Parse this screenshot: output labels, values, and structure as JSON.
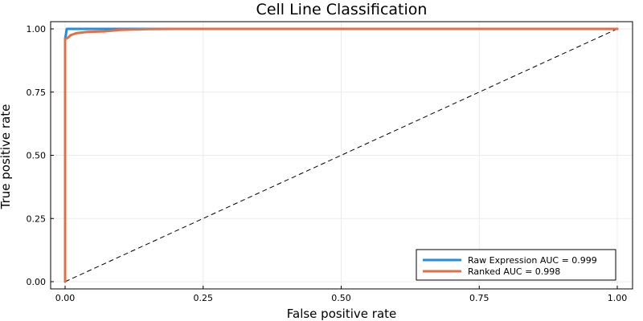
{
  "chart_data": {
    "type": "line",
    "title": "Cell Line Classification",
    "xlabel": "False positive rate",
    "ylabel": "True positive rate",
    "xlim": [
      0,
      1
    ],
    "ylim": [
      0,
      1
    ],
    "xticks": [
      {
        "value": 0,
        "label": "0.00"
      },
      {
        "value": 0.25,
        "label": "0.25"
      },
      {
        "value": 0.5,
        "label": "0.50"
      },
      {
        "value": 0.75,
        "label": "0.75"
      },
      {
        "value": 1,
        "label": "1.00"
      }
    ],
    "yticks": [
      {
        "value": 0,
        "label": "0.00"
      },
      {
        "value": 0.25,
        "label": "0.25"
      },
      {
        "value": 0.5,
        "label": "0.50"
      },
      {
        "value": 0.75,
        "label": "0.75"
      },
      {
        "value": 1,
        "label": "1.00"
      }
    ],
    "grid": true,
    "legend_position": "bottom-right",
    "series": [
      {
        "name": "Raw Expression AUC = 0.999",
        "color": "#1f8fe0",
        "x": [
          0,
          0,
          0.002,
          0.003,
          1
        ],
        "y": [
          0,
          0.96,
          0.985,
          1.0,
          1.0
        ]
      },
      {
        "name": "Ranked AUC = 0.998",
        "color": "#e26f46",
        "x": [
          0,
          0,
          0.005,
          0.01,
          0.02,
          0.04,
          0.07,
          0.1,
          0.15,
          0.2,
          1
        ],
        "y": [
          0,
          0.96,
          0.965,
          0.975,
          0.983,
          0.988,
          0.99,
          0.996,
          0.999,
          1.0,
          1.0
        ]
      }
    ],
    "reference_line": {
      "x": [
        0,
        1
      ],
      "y": [
        0,
        1
      ],
      "color": "#000000",
      "style": "dashed"
    }
  }
}
